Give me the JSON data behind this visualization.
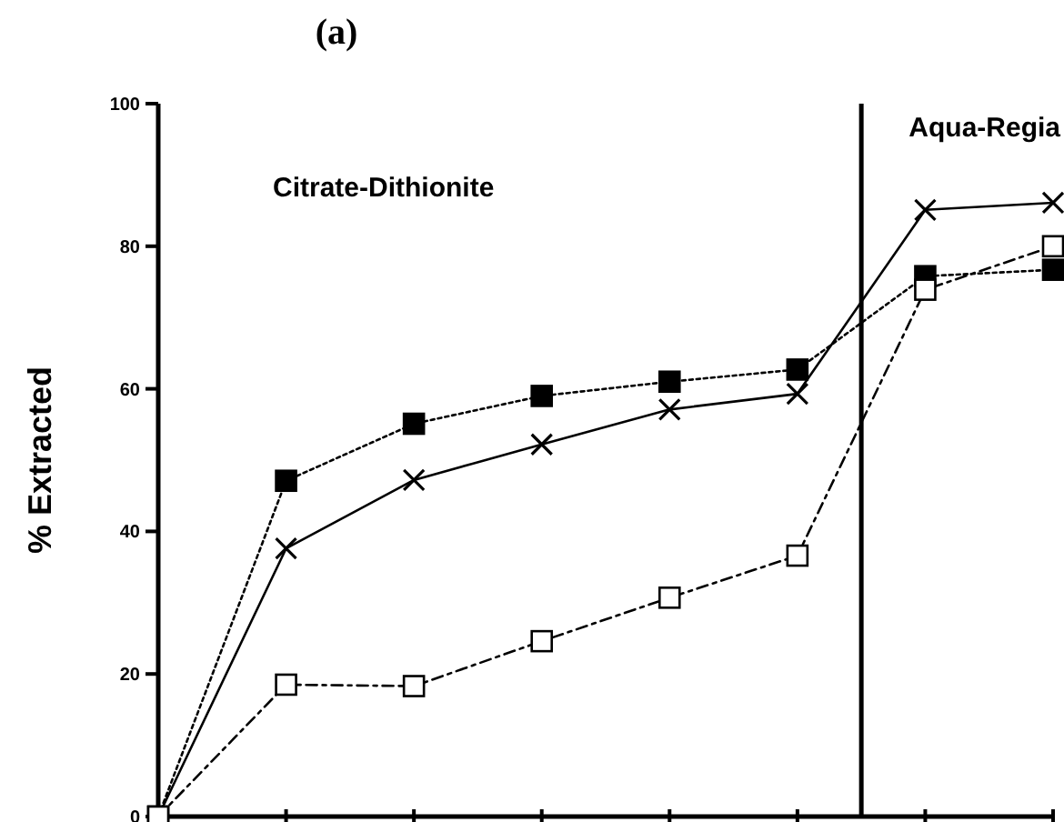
{
  "chart_data": {
    "type": "line",
    "title": "(a)",
    "ylabel": "% Extracted",
    "categories": [
      null,
      null,
      null,
      null,
      null,
      null,
      null,
      null
    ],
    "ylim": [
      0,
      100
    ],
    "yticks": [
      0,
      20,
      40,
      60,
      80,
      100
    ],
    "tick_labels": "y",
    "series": [
      {
        "color": "#000000",
        "marker": "square",
        "line_style": "dotted",
        "values": [
          0,
          47.1,
          55.1,
          59.0,
          61.0,
          62.7,
          75.8,
          76.7
        ]
      },
      {
        "color": "#000000",
        "marker": "cross",
        "line_style": "solid",
        "values": [
          0,
          37.6,
          47.2,
          52.2,
          57.1,
          59.3,
          85.1,
          86.1
        ]
      },
      {
        "color": "#000000",
        "marker": "square",
        "line_style": "dashed",
        "values": [
          0,
          18.5,
          18.3,
          24.6,
          30.7,
          36.6,
          73.9,
          80.0
        ]
      }
    ],
    "annotations": [
      "Citrate-Dithionite",
      "Aqua-Regia"
    ]
  }
}
